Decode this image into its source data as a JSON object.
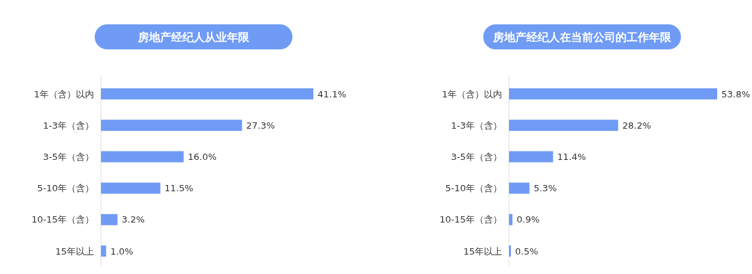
{
  "chart_data": [
    {
      "type": "bar",
      "orientation": "horizontal",
      "title": "房地产经纪人从业年限",
      "categories": [
        "1年（含）以内",
        "1-3年（含）",
        "3-5年（含）",
        "5-10年（含）",
        "10-15年（含）",
        "15年以上"
      ],
      "values": [
        41.1,
        27.3,
        16.0,
        11.5,
        3.2,
        1.0
      ],
      "value_labels": [
        "41.1%",
        "27.3%",
        "16.0%",
        "11.5%",
        "3.2%",
        "1.0%"
      ],
      "color": "#6f9bf5"
    },
    {
      "type": "bar",
      "orientation": "horizontal",
      "title": "房地产经纪人在当前公司的工作年限",
      "categories": [
        "1年（含）以内",
        "1-3年（含）",
        "3-5年（含）",
        "5-10年（含）",
        "10-15年（含）",
        "15年以上"
      ],
      "values": [
        53.8,
        28.2,
        11.4,
        5.3,
        0.9,
        0.5
      ],
      "value_labels": [
        "53.8%",
        "28.2%",
        "11.4%",
        "5.3%",
        "0.9%",
        "0.5%"
      ],
      "color": "#6f9bf5"
    }
  ]
}
